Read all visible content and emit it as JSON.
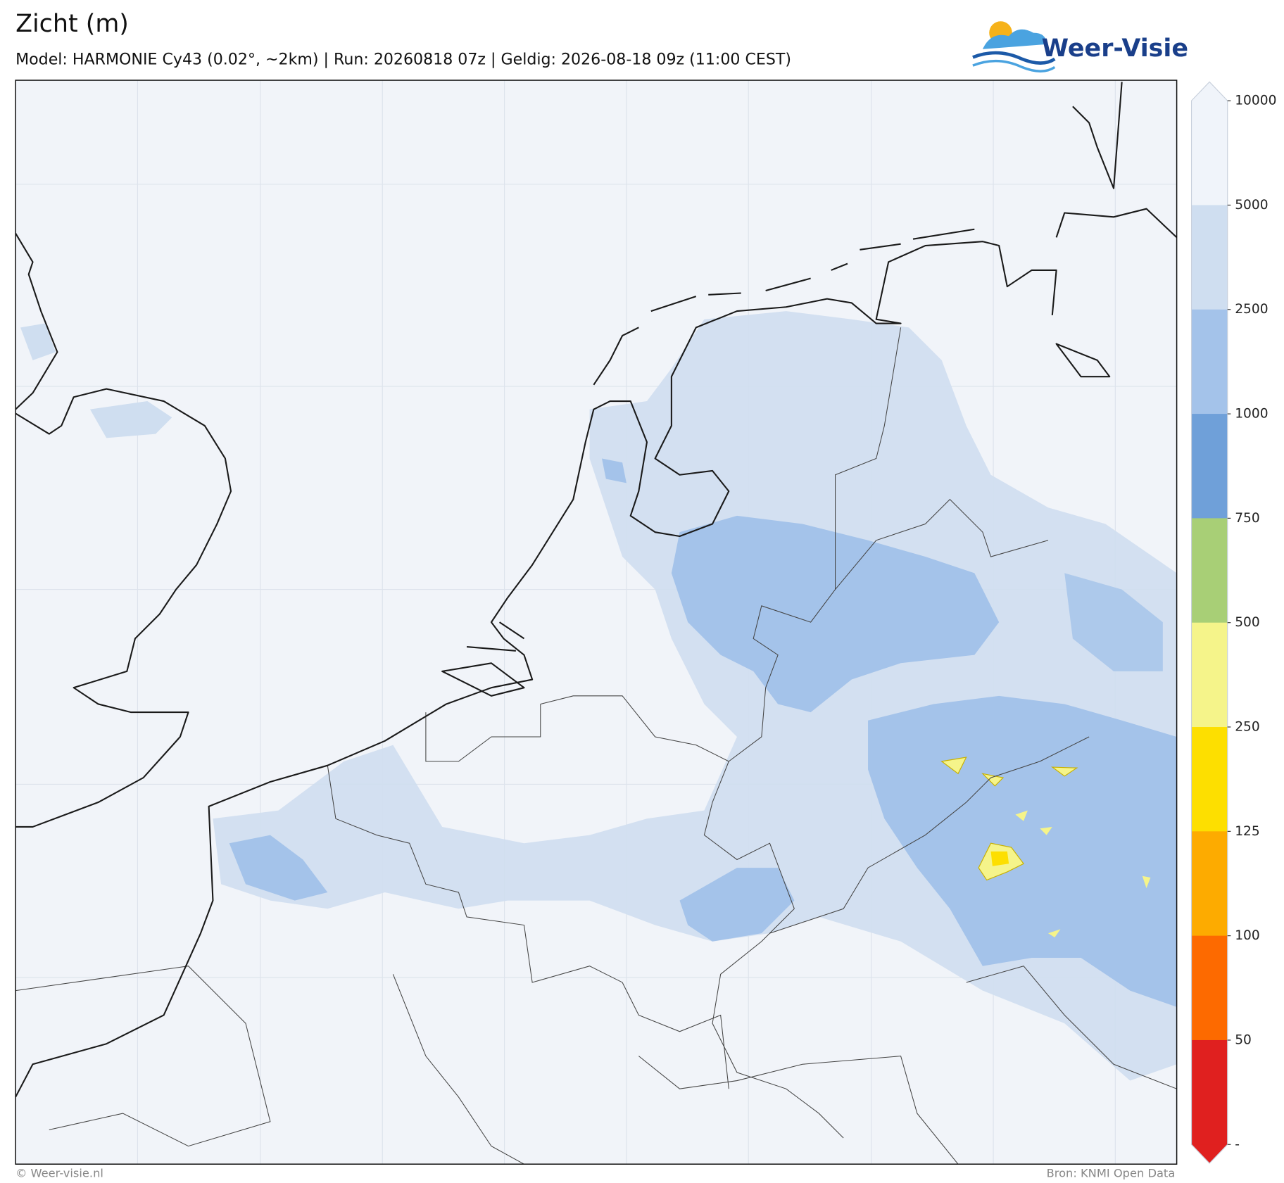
{
  "header": {
    "title": "Zicht (m)",
    "subtitle": "Model: HARMONIE Cy43 (0.02°, ~2km)  |  Run: 20260818 07z  |  Geldig: 2026-08-18 09z (11:00 CEST)",
    "logo": "Weer-Visie"
  },
  "colorbar": {
    "ticks": [
      10000,
      5000,
      2500,
      1000,
      750,
      500,
      250,
      125,
      100,
      50,
      "-"
    ],
    "colors": [
      "#f0f4fa",
      "#cfdef0",
      "#a4c3ea",
      "#6fa0d9",
      "#a8cf76",
      "#f5f48a",
      "#fddf00",
      "#fdab00",
      "#fd6a00",
      "#e0201f"
    ]
  },
  "footer": {
    "left": "© Weer-visie.nl",
    "right": "Bron: KNMI Open Data"
  }
}
